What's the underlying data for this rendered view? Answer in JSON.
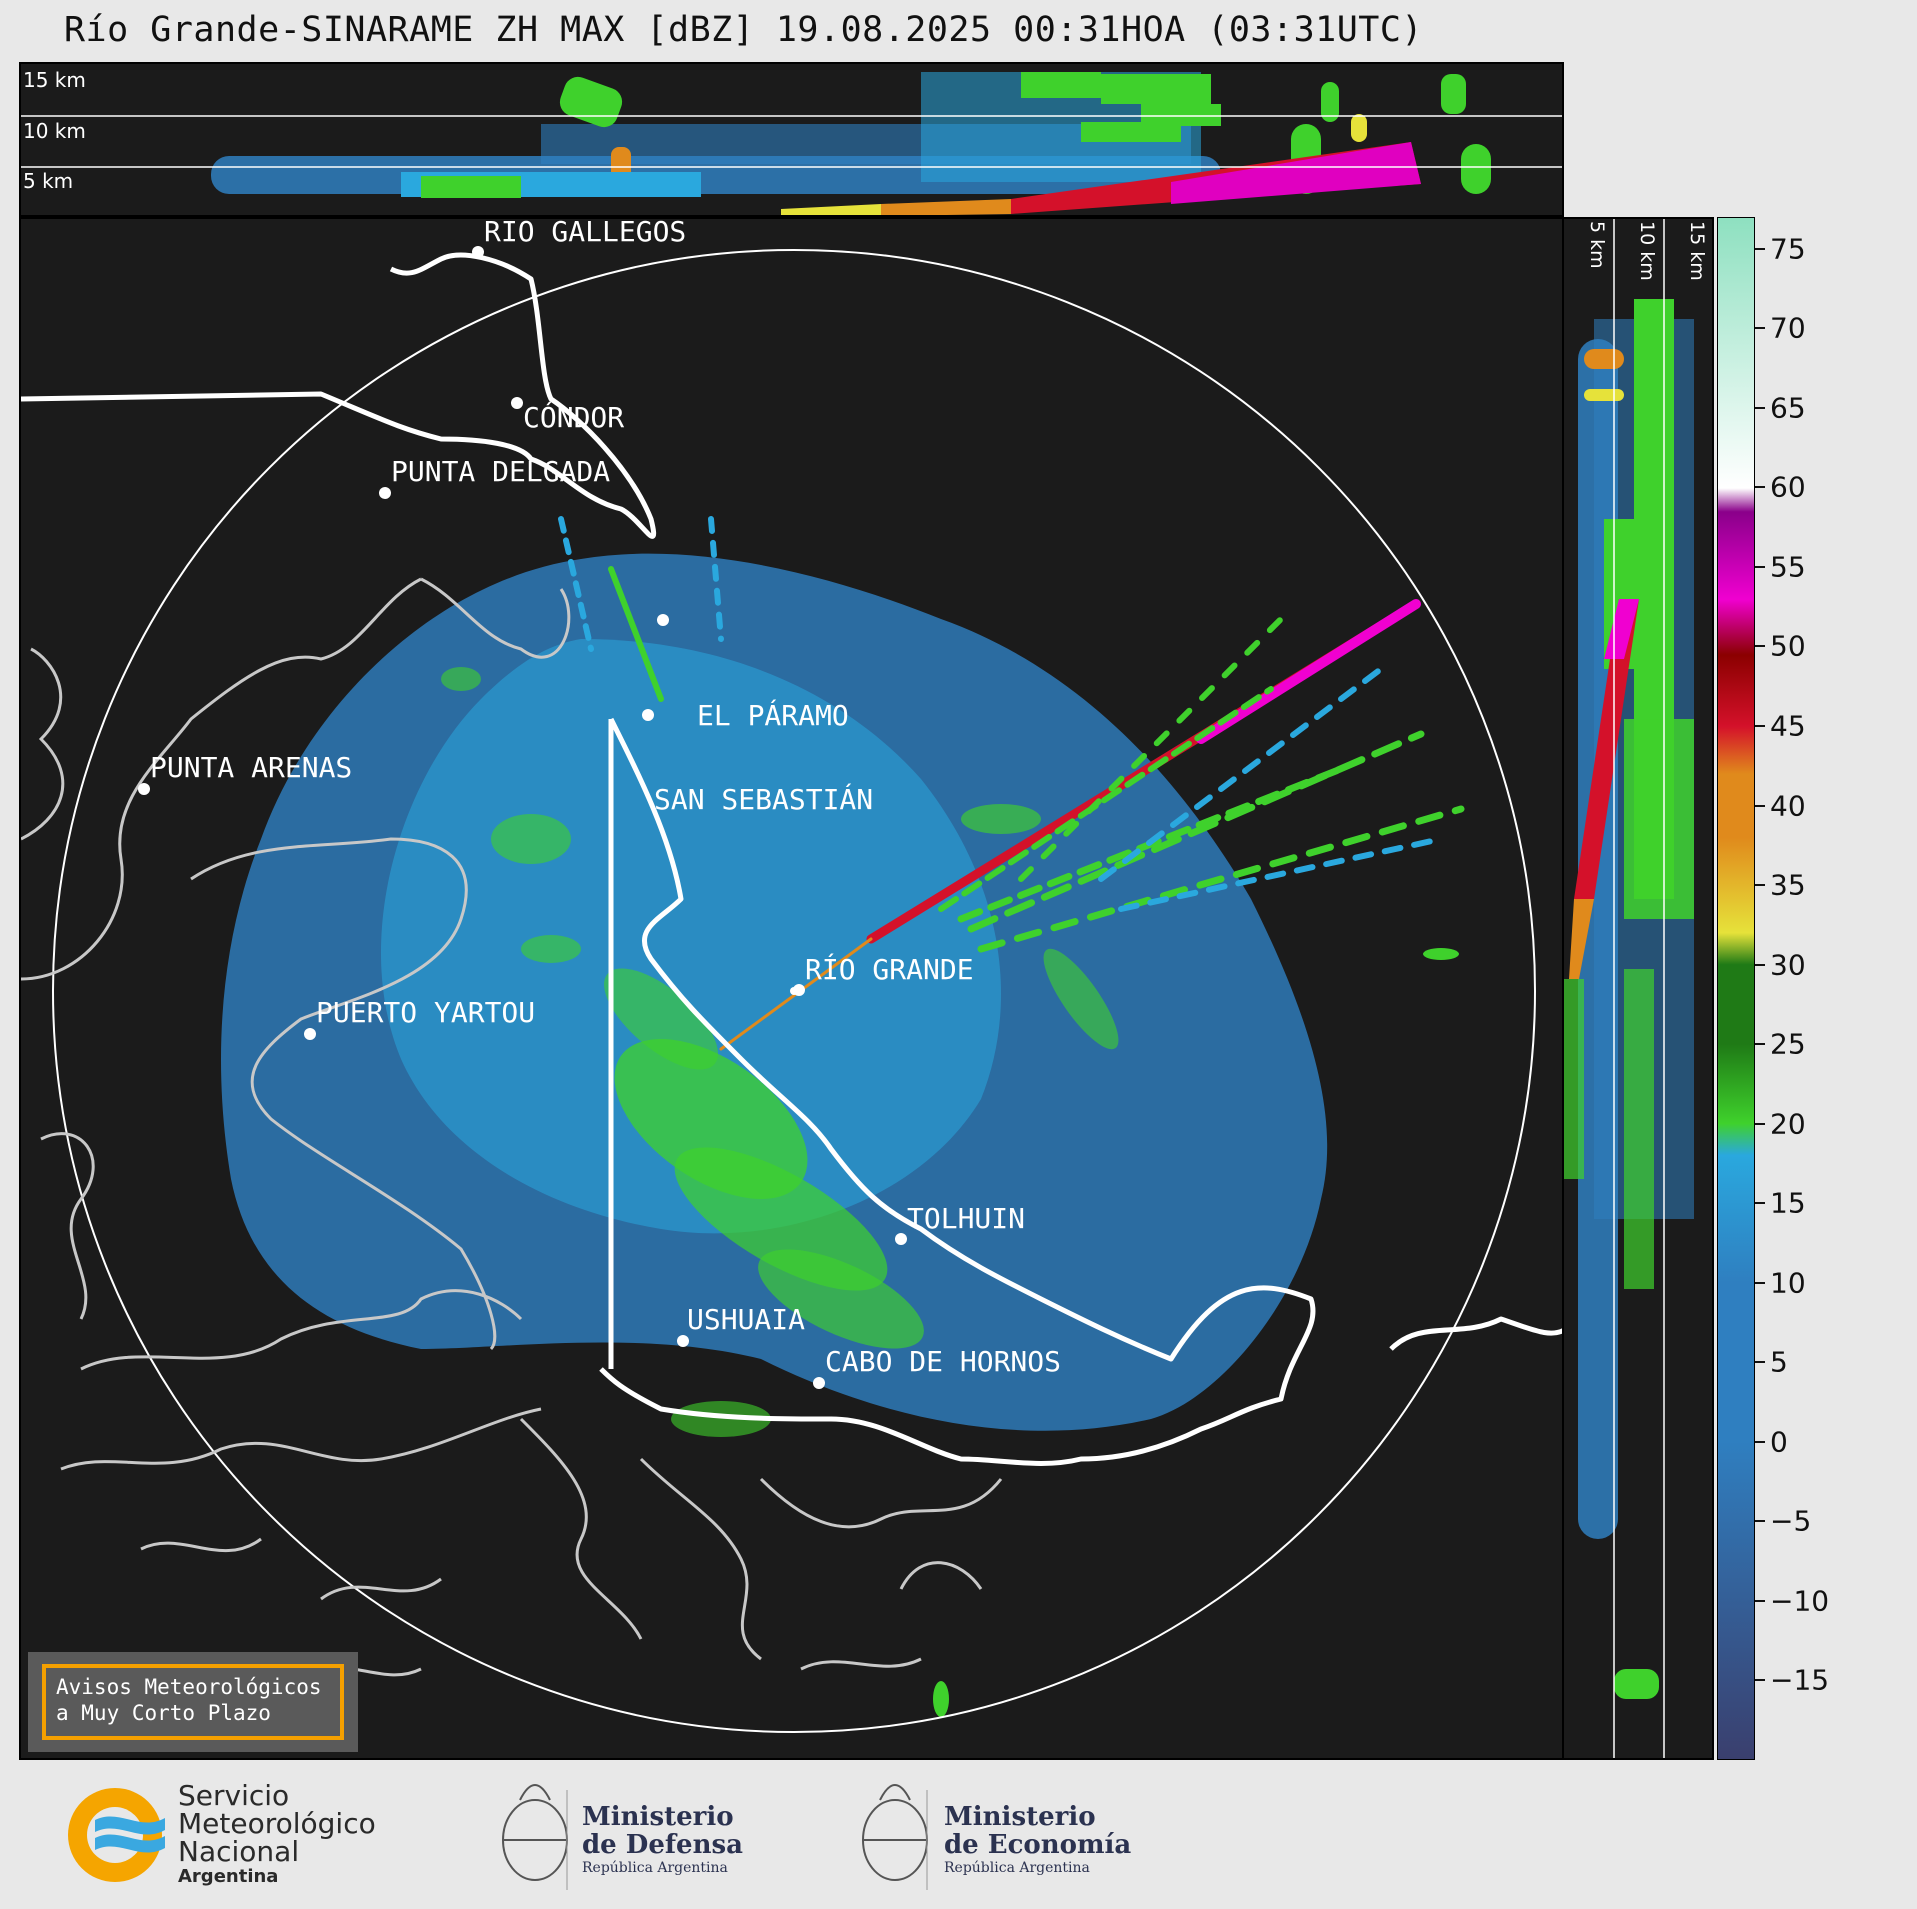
{
  "title": "Río Grande-SINARAME ZH MAX [dBZ] 19.08.2025 00:31HOA (03:31UTC)",
  "top_panel": {
    "altitude_labels": [
      "15 km",
      "10 km",
      "5 km"
    ]
  },
  "side_panel": {
    "altitude_labels": [
      "5 km",
      "10 km",
      "15 km"
    ]
  },
  "places": [
    {
      "name": "RÍO GALLEGOS"
    },
    {
      "name": "CÓNDOR"
    },
    {
      "name": "PUNTA DELGADA"
    },
    {
      "name": "EL PÁRAMO"
    },
    {
      "name": "SAN SEBASTIÁN"
    },
    {
      "name": "PUNTA ARENAS"
    },
    {
      "name": "RÍO GRANDE"
    },
    {
      "name": "PUERTO YARTOU"
    },
    {
      "name": "TOLHUIN"
    },
    {
      "name": "USHUAIA"
    },
    {
      "name": "CABO DE HORNOS"
    }
  ],
  "colorbar": {
    "unit": "dBZ",
    "ticks": [
      "75",
      "70",
      "65",
      "60",
      "55",
      "50",
      "45",
      "40",
      "35",
      "30",
      "25",
      "20",
      "15",
      "10",
      "5",
      "0",
      "−5",
      "−10",
      "−15"
    ],
    "range": [
      -20,
      77
    ],
    "colors": {
      "low": "#3a3f6e",
      "blue": "#2f7fc0",
      "cyan": "#2aa8de",
      "green": "#3fd12c",
      "dark_green": "#1f7a16",
      "yellow": "#e6e23a",
      "orange": "#e08a1c",
      "red": "#d4112a",
      "dark_red": "#8b0000",
      "magenta": "#f000d0",
      "purple": "#8a008a",
      "white": "#ffffff",
      "mint": "#8ee0c0"
    }
  },
  "alert": {
    "line1": "Avisos Meteorológicos",
    "line2": "a Muy Corto Plazo"
  },
  "logos": {
    "smn": {
      "line1": "Servicio",
      "line2": "Meteorológico",
      "line3": "Nacional",
      "line4": "Argentina"
    },
    "defensa": {
      "line1": "Ministerio",
      "line2": "de Defensa",
      "line3": "República Argentina"
    },
    "economia": {
      "line1": "Ministerio",
      "line2": "de Economía",
      "line3": "República Argentina"
    }
  }
}
